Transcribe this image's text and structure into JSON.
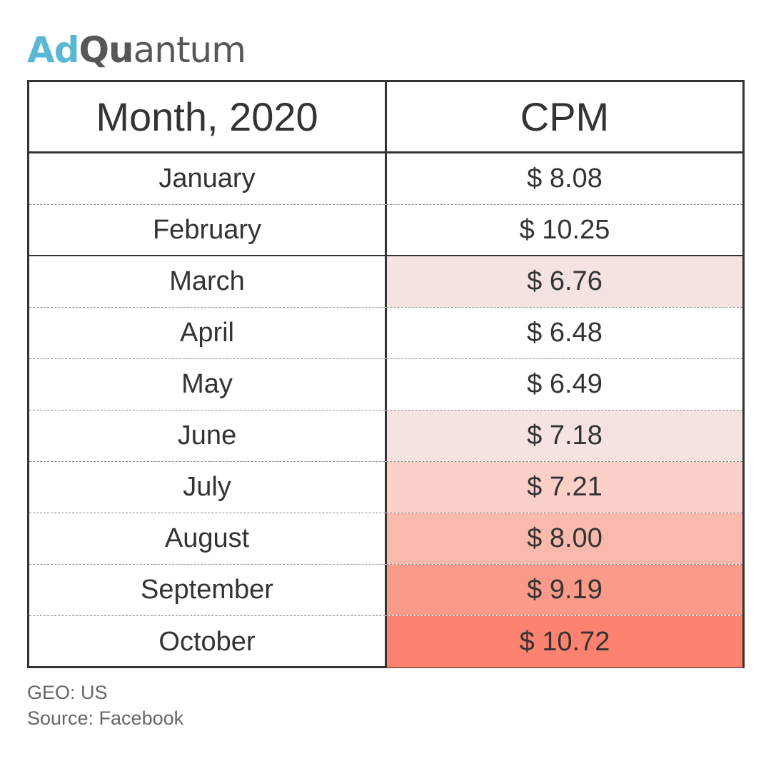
{
  "logo": {
    "part1": "Ad",
    "part2": "Qu",
    "part3": "antum"
  },
  "table": {
    "headers": {
      "month": "Month, 2020",
      "cpm": "CPM"
    }
  },
  "chart_data": {
    "type": "table",
    "columns": [
      "Month, 2020",
      "CPM"
    ],
    "rows": [
      {
        "month": "January",
        "cpm": "$ 8.08",
        "value": 8.08,
        "highlight": "#ffffff"
      },
      {
        "month": "February",
        "cpm": "$ 10.25",
        "value": 10.25,
        "highlight": "#ffffff"
      },
      {
        "month": "March",
        "cpm": "$ 6.76",
        "value": 6.76,
        "highlight": "#f5e3e1"
      },
      {
        "month": "April",
        "cpm": "$ 6.48",
        "value": 6.48,
        "highlight": "#ffffff"
      },
      {
        "month": "May",
        "cpm": "$ 6.49",
        "value": 6.49,
        "highlight": "#ffffff"
      },
      {
        "month": "June",
        "cpm": "$ 7.18",
        "value": 7.18,
        "highlight": "#f5e3e1"
      },
      {
        "month": "July",
        "cpm": "$ 7.21",
        "value": 7.21,
        "highlight": "#fbd0c9"
      },
      {
        "month": "August",
        "cpm": "$ 8.00",
        "value": 8.0,
        "highlight": "#f9b9ad"
      },
      {
        "month": "September",
        "cpm": "$ 9.19",
        "value": 9.19,
        "highlight": "#fa9a89"
      },
      {
        "month": "October",
        "cpm": "$ 10.72",
        "value": 10.72,
        "highlight": "#fd8370"
      }
    ]
  },
  "notes": {
    "geo": "GEO: US",
    "source": "Source: Facebook"
  }
}
